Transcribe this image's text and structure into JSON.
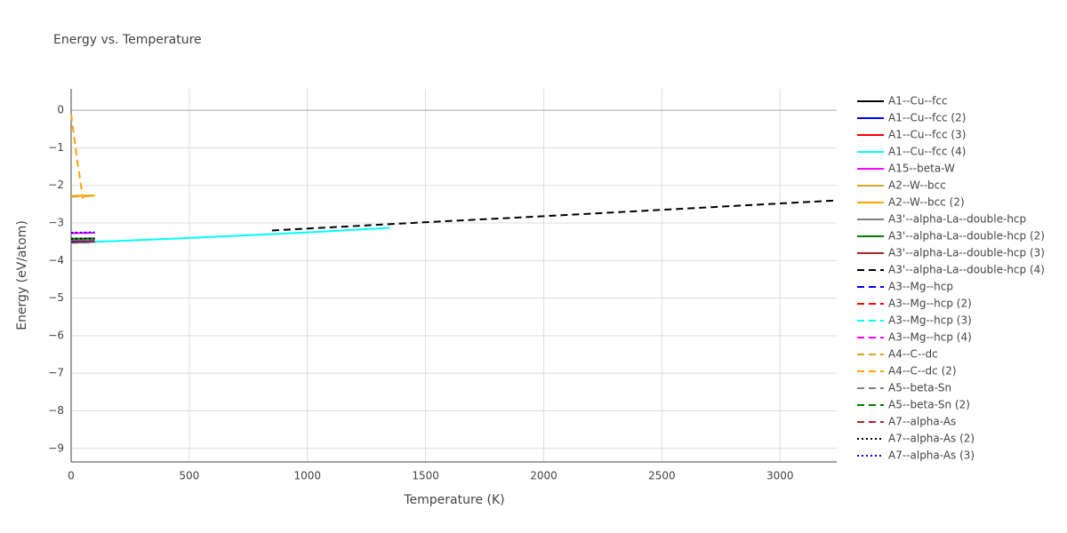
{
  "chart_data": {
    "type": "line",
    "title": "Energy vs. Temperature",
    "x_label": "Temperature (K)",
    "y_label": "Energy (eV/atom)",
    "xlim": [
      0,
      3240
    ],
    "ylim": [
      -9.36,
      0.57
    ],
    "xticks": [
      0,
      500,
      1000,
      1500,
      2000,
      2500,
      3000
    ],
    "yticks": [
      0,
      {
        "value": -1,
        "label": "−1"
      },
      {
        "value": -2,
        "label": "−2"
      },
      {
        "value": -3,
        "label": "−3"
      },
      {
        "value": -4,
        "label": "−4"
      },
      {
        "value": -5,
        "label": "−5"
      },
      {
        "value": -6,
        "label": "−6"
      },
      {
        "value": -7,
        "label": "−7"
      },
      {
        "value": -8,
        "label": "−8"
      },
      {
        "value": -9,
        "label": "−9"
      }
    ],
    "grid": true,
    "series": [
      {
        "name": "A1--Cu--fcc",
        "color": "#000000",
        "dash": "solid",
        "x": [
          0,
          100
        ],
        "values": [
          -3.5,
          -3.48
        ]
      },
      {
        "name": "A1--Cu--fcc (2)",
        "color": "#0000ff",
        "dash": "solid",
        "x": [
          0,
          100
        ],
        "values": [
          -3.5,
          -3.48
        ]
      },
      {
        "name": "A1--Cu--fcc (3)",
        "color": "#ff0000",
        "dash": "solid",
        "x": [
          0,
          100
        ],
        "values": [
          -3.52,
          -3.5
        ]
      },
      {
        "name": "A1--Cu--fcc (4)",
        "color": "#00ffff",
        "dash": "solid",
        "x": [
          0,
          500,
          1000,
          1350
        ],
        "values": [
          -3.53,
          -3.4,
          -3.25,
          -3.13
        ]
      },
      {
        "name": "A15--beta-W",
        "color": "#ff00ff",
        "dash": "solid",
        "x": [
          0,
          100
        ],
        "values": [
          -3.27,
          -3.26
        ]
      },
      {
        "name": "A2--W--bcc",
        "color": "#daa520",
        "dash": "solid",
        "x": [
          0,
          100
        ],
        "values": [
          -2.28,
          -2.27
        ]
      },
      {
        "name": "A2--W--bcc (2)",
        "color": "#ffa500",
        "dash": "solid",
        "x": [
          0,
          100
        ],
        "values": [
          -2.29,
          -2.27
        ]
      },
      {
        "name": "A3'--alpha-La--double-hcp",
        "color": "#808080",
        "dash": "solid",
        "x": [
          0,
          100
        ],
        "values": [
          -3.45,
          -3.44
        ]
      },
      {
        "name": "A3'--alpha-La--double-hcp (2)",
        "color": "#008000",
        "dash": "solid",
        "x": [
          0,
          100
        ],
        "values": [
          -3.42,
          -3.41
        ]
      },
      {
        "name": "A3'--alpha-La--double-hcp (3)",
        "color": "#a52a2a",
        "dash": "solid",
        "x": [
          0,
          100
        ],
        "values": [
          -3.52,
          -3.5
        ]
      },
      {
        "name": "A3'--alpha-La--double-hcp (4)",
        "color": "#000000",
        "dash": "dash",
        "x": [
          850,
          1500,
          2000,
          2500,
          3240
        ],
        "values": [
          -3.2,
          -2.98,
          -2.82,
          -2.65,
          -2.4
        ]
      },
      {
        "name": "A3--Mg--hcp",
        "color": "#0000ff",
        "dash": "dash",
        "x": [
          0,
          100
        ],
        "values": [
          -3.43,
          -3.42
        ]
      },
      {
        "name": "A3--Mg--hcp (2)",
        "color": "#ff0000",
        "dash": "dash",
        "x": [
          0,
          100
        ],
        "values": [
          -3.52,
          -3.5
        ]
      },
      {
        "name": "A3--Mg--hcp (3)",
        "color": "#00ffff",
        "dash": "dash",
        "x": [
          0,
          100
        ],
        "values": [
          -3.53,
          -3.52
        ]
      },
      {
        "name": "A3--Mg--hcp (4)",
        "color": "#ff00ff",
        "dash": "dash",
        "x": [
          0,
          100
        ],
        "values": [
          -3.27,
          -3.26
        ]
      },
      {
        "name": "A4--C--dc",
        "color": "#daa520",
        "dash": "dash",
        "x": [
          0,
          100
        ],
        "values": [
          -2.3,
          -2.28
        ]
      },
      {
        "name": "A4--C--dc (2)",
        "color": "#ffa500",
        "dash": "dash",
        "x": [
          0,
          25,
          50
        ],
        "values": [
          -0.1,
          -1.3,
          -2.35
        ]
      },
      {
        "name": "A5--beta-Sn",
        "color": "#808080",
        "dash": "dash",
        "x": [
          0,
          100
        ],
        "values": [
          -3.45,
          -3.44
        ]
      },
      {
        "name": "A5--beta-Sn (2)",
        "color": "#008000",
        "dash": "dash",
        "x": [
          0,
          100
        ],
        "values": [
          -3.42,
          -3.41
        ]
      },
      {
        "name": "A7--alpha-As",
        "color": "#a52a2a",
        "dash": "dash",
        "x": [
          0,
          100
        ],
        "values": [
          -3.52,
          -3.5
        ]
      },
      {
        "name": "A7--alpha-As (2)",
        "color": "#000000",
        "dash": "dot",
        "x": [
          0,
          100
        ],
        "values": [
          -3.42,
          -3.41
        ]
      },
      {
        "name": "A7--alpha-As (3)",
        "color": "#0000ff",
        "dash": "dot",
        "x": [
          0,
          100
        ],
        "values": [
          -3.26,
          -3.25
        ]
      }
    ]
  }
}
